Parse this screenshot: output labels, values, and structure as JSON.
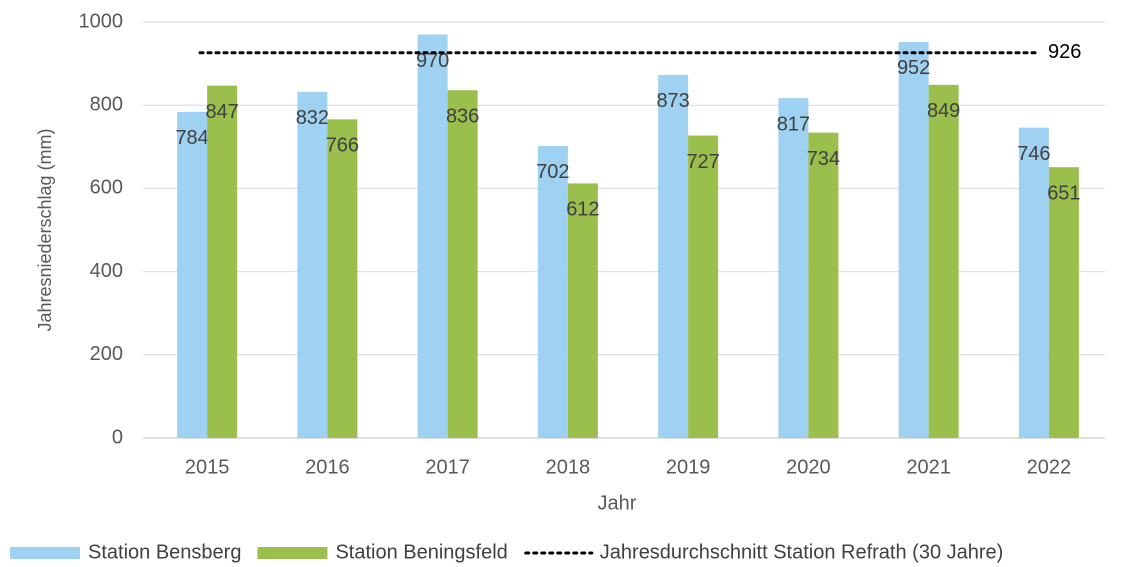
{
  "chart_data": {
    "type": "bar",
    "categories": [
      "2015",
      "2016",
      "2017",
      "2018",
      "2019",
      "2020",
      "2021",
      "2022"
    ],
    "series": [
      {
        "name": "Station Bensberg",
        "color": "#9fd2f2",
        "values": [
          784,
          832,
          970,
          702,
          873,
          817,
          952,
          746
        ]
      },
      {
        "name": "Station Beningsfeld",
        "color": "#9bbf4c",
        "values": [
          847,
          766,
          836,
          612,
          727,
          734,
          849,
          651
        ]
      }
    ],
    "reference_line": {
      "name": "Jahresdurchschnitt Station Refrath (30 Jahre)",
      "value": 926,
      "color": "#000000"
    },
    "xlabel": "Jahr",
    "ylabel": "Jahresniederschlag (mm)",
    "ylim": [
      0,
      1000
    ],
    "yticks": [
      0,
      200,
      400,
      600,
      800,
      1000
    ],
    "grid": true,
    "legend": "bottom"
  }
}
